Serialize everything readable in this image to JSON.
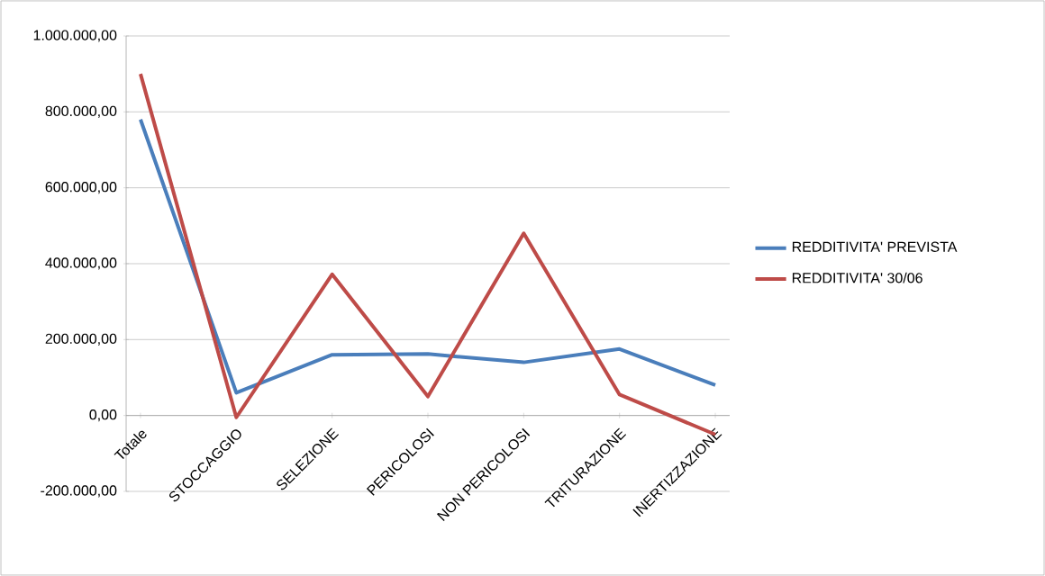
{
  "chart_data": {
    "type": "line",
    "categories": [
      "Totale",
      "STOCCAGGIO",
      "SELEZIONE",
      "PERICOLOSI",
      "NON PERICOLOSI",
      "TRITURAZIONE",
      "INERTIZZAZIONE"
    ],
    "series": [
      {
        "name": "REDDITIVITA' PREVISTA",
        "color": "#4a7ebb",
        "values": [
          780000,
          60000,
          160000,
          162000,
          140000,
          175000,
          80000
        ]
      },
      {
        "name": "REDDITIVITA' 30/06",
        "color": "#be4b48",
        "values": [
          900000,
          -5000,
          372000,
          50000,
          480000,
          55000,
          -50000
        ]
      }
    ],
    "ylim": [
      -200000,
      1000000
    ],
    "yticks": [
      {
        "value": -200000,
        "label": "-200.000,00"
      },
      {
        "value": 0,
        "label": "0,00"
      },
      {
        "value": 200000,
        "label": "200.000,00"
      },
      {
        "value": 400000,
        "label": "400.000,00"
      },
      {
        "value": 600000,
        "label": "600.000,00"
      },
      {
        "value": 800000,
        "label": "800.000,00"
      },
      {
        "value": 1000000,
        "label": "1.000.000,00"
      }
    ],
    "grid": "y",
    "legend": "right",
    "marker": "none",
    "line_style": "solid"
  }
}
